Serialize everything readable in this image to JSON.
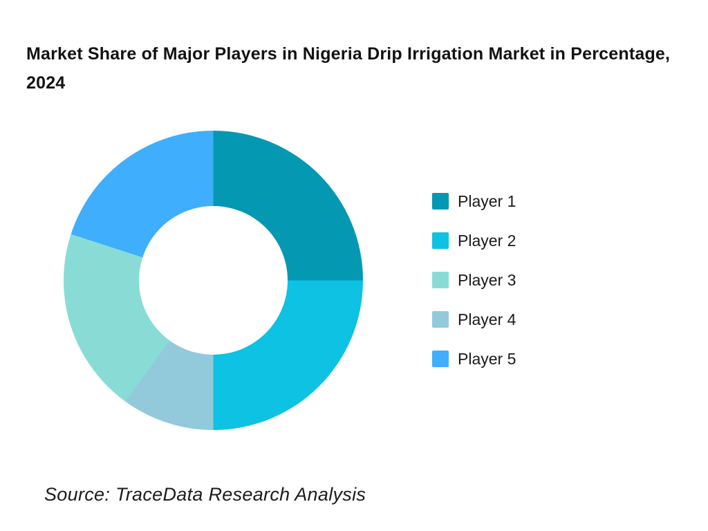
{
  "page": {
    "background": "#ffffff"
  },
  "header": {
    "title": "Market Share of Major Players in Nigeria Drip Irrigation Market in Percentage, 2024"
  },
  "footer": {
    "source": "Source: TraceData Research Analysis"
  },
  "legend": {
    "position": "right",
    "items": [
      {
        "label": "Player 1",
        "color": "#0598B2"
      },
      {
        "label": "Player 2",
        "color": "#0DC2E2"
      },
      {
        "label": "Player 3",
        "color": "#89DCD6"
      },
      {
        "label": "Player 4",
        "color": "#92CADB"
      },
      {
        "label": "Player 5",
        "color": "#3FAEFC"
      }
    ]
  },
  "chart_data": {
    "type": "pie",
    "subtype": "donut",
    "title": "Market Share of Major Players in Nigeria Drip Irrigation Market in Percentage, 2024",
    "unit": "%",
    "categories": [
      "Player 1",
      "Player 2",
      "Player 3",
      "Player 4",
      "Player 5"
    ],
    "values": [
      25,
      25,
      20,
      10,
      20
    ],
    "colors": [
      "#0598B2",
      "#0DC2E2",
      "#89DCD6",
      "#92CADB",
      "#3FAEFC"
    ],
    "segments_clockwise_from_top": [
      {
        "label": "Player 1",
        "value": 25,
        "color": "#0598B2"
      },
      {
        "label": "Player 2",
        "value": 25,
        "color": "#0DC2E2"
      },
      {
        "label": "Player 4",
        "value": 10,
        "color": "#92CADB"
      },
      {
        "label": "Player 3",
        "value": 20,
        "color": "#89DCD6"
      },
      {
        "label": "Player 5",
        "value": 20,
        "color": "#3FAEFC"
      }
    ],
    "start_angle_deg": 0,
    "direction": "clockwise",
    "inner_radius_ratio": 0.5,
    "legend_position": "right",
    "data_labels": false,
    "source": "Source: TraceData Research Analysis"
  }
}
